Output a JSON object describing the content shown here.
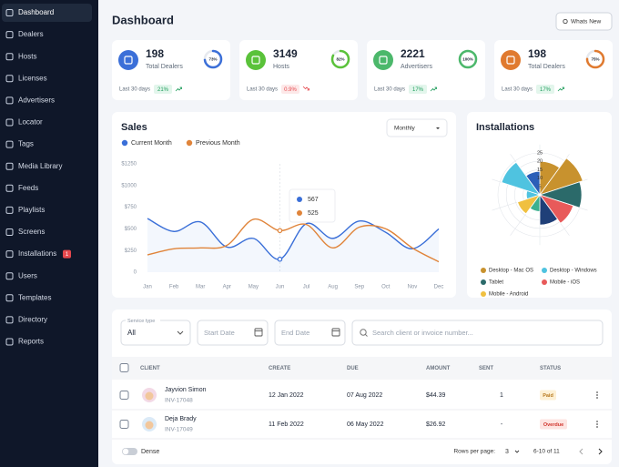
{
  "sidebar": {
    "items": [
      {
        "label": "Dashboard",
        "active": true
      },
      {
        "label": "Dealers"
      },
      {
        "label": "Hosts"
      },
      {
        "label": "Licenses"
      },
      {
        "label": "Advertisers"
      },
      {
        "label": "Locator"
      },
      {
        "label": "Tags"
      },
      {
        "label": "Media Library"
      },
      {
        "label": "Feeds"
      },
      {
        "label": "Playlists"
      },
      {
        "label": "Screens"
      },
      {
        "label": "Installations",
        "badge": "1"
      },
      {
        "label": "Users"
      },
      {
        "label": "Templates"
      },
      {
        "label": "Directory"
      },
      {
        "label": "Reports"
      }
    ]
  },
  "header": {
    "title": "Dashboard",
    "button": "Whats New"
  },
  "stats": [
    {
      "value": 198,
      "label": "Total Dealers",
      "progress": 73,
      "progress_label": "73%",
      "period": "Last 30 days",
      "change": "21%",
      "trend": "up",
      "color": "#3b6fd8"
    },
    {
      "value": 3149,
      "label": "Hosts",
      "progress": 82,
      "progress_label": "82%",
      "period": "Last 30 days",
      "change": "0.9%",
      "trend": "down",
      "color": "#5ac23a"
    },
    {
      "value": 2221,
      "label": "Advertisers",
      "progress": 100,
      "progress_label": "100%",
      "period": "Last 30 days",
      "change": "17%",
      "trend": "up",
      "color": "#4cb86b"
    },
    {
      "value": 198,
      "label": "Total Dealers",
      "progress": 75,
      "progress_label": "75%",
      "period": "Last 30 days",
      "change": "17%",
      "trend": "up",
      "color": "#e07a2f"
    }
  ],
  "sales_chart": {
    "type": "line",
    "title": "Sales",
    "period": "Monthly",
    "categories": [
      "Jan",
      "Feb",
      "Mar",
      "Apr",
      "May",
      "Jun",
      "Jul",
      "Aug",
      "Sep",
      "Oct",
      "Nov",
      "Dec"
    ],
    "series": [
      {
        "name": "Current Month",
        "color": "#3a6fd8",
        "values": [
          620,
          470,
          580,
          290,
          390,
          150,
          560,
          390,
          590,
          460,
          270,
          500
        ]
      },
      {
        "name": "Previous Month",
        "color": "#e0843a",
        "values": [
          200,
          270,
          280,
          310,
          610,
          480,
          550,
          280,
          520,
          500,
          280,
          120
        ]
      }
    ],
    "ylim": [
      0,
      1250
    ],
    "yticks": [
      0,
      {
        "value": 250,
        "label": "$250"
      },
      {
        "value": 500,
        "label": "$500"
      },
      {
        "value": 750,
        "label": "$750"
      },
      {
        "value": 1000,
        "label": "$1000"
      },
      {
        "value": 1250,
        "label": "$1250"
      }
    ],
    "tooltip": [
      567,
      525
    ]
  },
  "installations_chart": {
    "type": "polar",
    "title": "Installations",
    "values": [
      20,
      27,
      25,
      21,
      18,
      10,
      14,
      8,
      24,
      14
    ],
    "colors": [
      "#c8922e",
      "#c8922e",
      "#2b6a6a",
      "#e85a5a",
      "#1f3f78",
      "#3bb08f",
      "#f0c040",
      "#4fc3e0",
      "#4fc3e0",
      "#2b5fb8"
    ],
    "rlim": [
      0,
      30
    ],
    "rticks": [
      5,
      10,
      15,
      20,
      25
    ],
    "legend": [
      {
        "name": "Desktop - Mac OS",
        "color": "#c8922e"
      },
      {
        "name": "Desktop - Windows",
        "color": "#4fc3e0"
      },
      {
        "name": "Tablet",
        "color": "#2b6a6a"
      },
      {
        "name": "Mobile - iOS",
        "color": "#e85a5a"
      },
      {
        "name": "Mobile - Android",
        "color": "#f0c040"
      }
    ]
  },
  "filters": {
    "service_type_label": "Service type",
    "service_type": "All",
    "start_date": "Start Date",
    "end_date": "End Date",
    "search": "Search client or invoice number..."
  },
  "table": {
    "columns": [
      "CLIENT",
      "CREATE",
      "DUE",
      "AMOUNT",
      "SENT",
      "STATUS"
    ],
    "rows": [
      {
        "name": "Jayvion Simon",
        "invoice": "INV-17048",
        "create": "12 Jan 2022",
        "due": "07 Aug 2022",
        "amount": "$44.39",
        "sent": "1",
        "status": "Paid"
      },
      {
        "name": "Deja Brady",
        "invoice": "INV-17049",
        "create": "11 Feb 2022",
        "due": "06 May 2022",
        "amount": "$26.92",
        "sent": "-",
        "status": "Overdue"
      }
    ]
  },
  "footer": {
    "dense": "Dense",
    "rows_per_page": "Rows per page:",
    "rows_value": "3",
    "range": "6-10 of 11"
  }
}
